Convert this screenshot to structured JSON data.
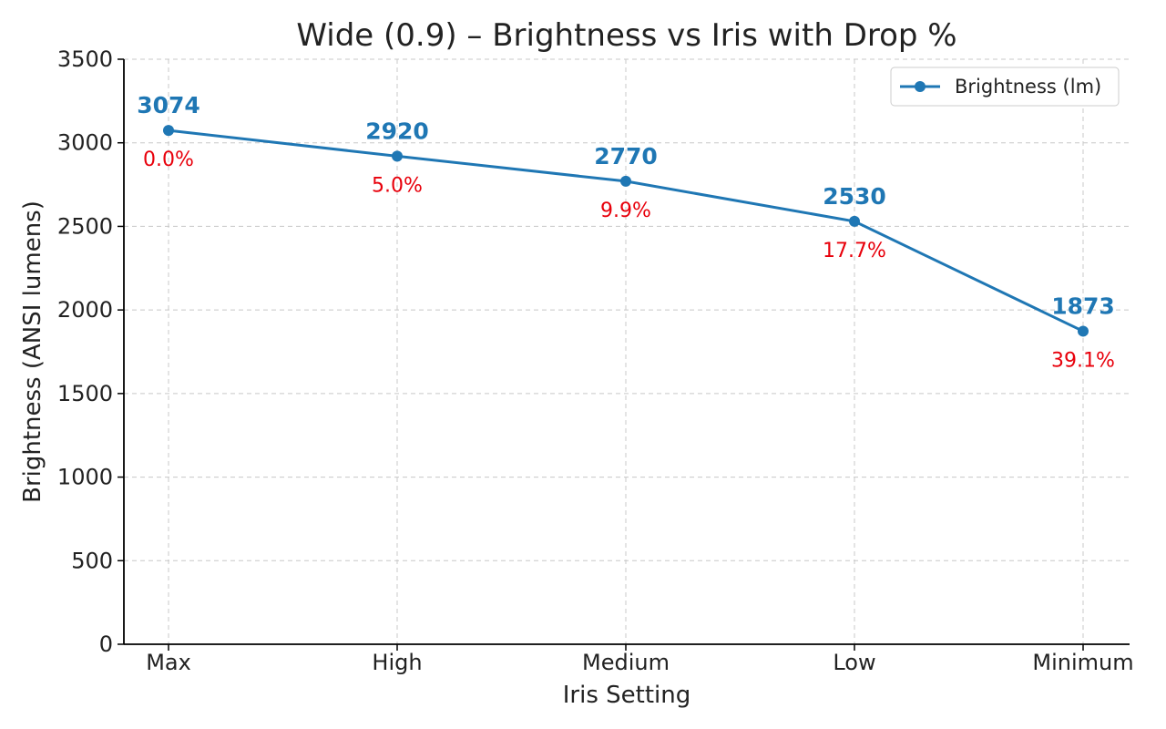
{
  "colors": {
    "series": "#1f77b4",
    "drop": "#e8000b",
    "axis": "#000000",
    "grid": "#c8c8c8"
  },
  "chart_data": {
    "type": "line",
    "title": "Wide (0.9) – Brightness vs Iris with Drop %",
    "xlabel": "Iris Setting",
    "ylabel": "Brightness (ANSI lumens)",
    "categories": [
      "Max",
      "High",
      "Medium",
      "Low",
      "Minimum"
    ],
    "ylim": [
      0,
      3500
    ],
    "yticks": [
      0,
      500,
      1000,
      1500,
      2000,
      2500,
      3000,
      3500
    ],
    "grid": true,
    "legend_position": "top-right",
    "series": [
      {
        "name": "Brightness (lm)",
        "values": [
          3074,
          2920,
          2770,
          2530,
          1873
        ],
        "marker": "circle"
      }
    ],
    "value_labels": [
      "3074",
      "2920",
      "2770",
      "2530",
      "1873"
    ],
    "drop_labels": [
      "0.0%",
      "5.0%",
      "9.9%",
      "17.7%",
      "39.1%"
    ]
  }
}
